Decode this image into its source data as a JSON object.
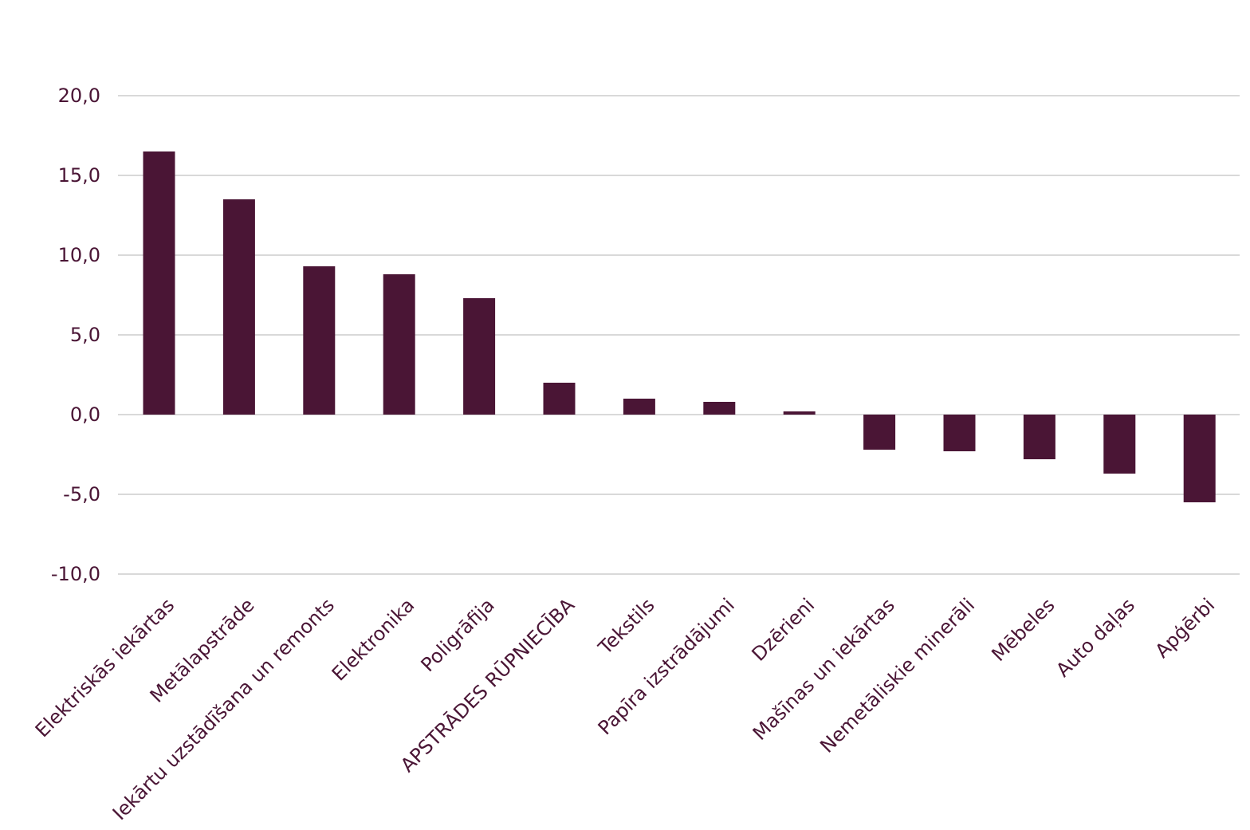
{
  "chart_data": {
    "type": "bar",
    "title": "",
    "xlabel": "",
    "ylabel": "",
    "ylim": [
      -10,
      20
    ],
    "yticks": [
      20,
      15,
      10,
      5,
      0,
      -5,
      -10
    ],
    "ytick_labels": [
      "20,0",
      "15,0",
      "10,0",
      "5,0",
      "0,0",
      "-5,0",
      "-10,0"
    ],
    "grid": true,
    "legend": "none",
    "categories": [
      "Elektriskās iekārtas",
      "Metālapstrāde",
      "Iekārtu uzstādīšana un remonts",
      "Elektronika",
      "Poligrāfija",
      "APSTRĀDES RŪPNIECĪBA",
      "Tekstils",
      "Papīra izstrādājumi",
      "Dzērieni",
      "Mašīnas un iekārtas",
      "Nemetāliskie minerāli",
      "Mēbeles",
      "Auto daļas",
      "Apģērbi"
    ],
    "values": [
      16.5,
      13.5,
      9.3,
      8.8,
      7.3,
      2.0,
      1.0,
      0.8,
      0.2,
      -2.2,
      -2.3,
      -2.8,
      -3.7,
      -5.5
    ],
    "colors": {
      "bar": "#4a1535",
      "text": "#4a1535",
      "grid": "#d9d9d9"
    }
  }
}
